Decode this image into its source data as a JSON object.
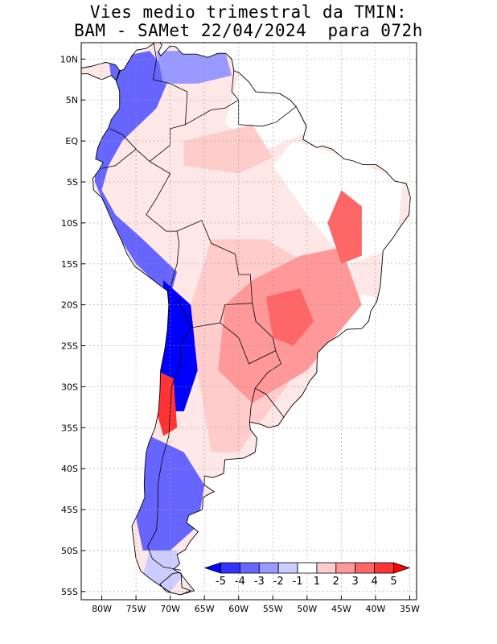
{
  "title": {
    "line1": "Vies medio trimestral da TMIN:",
    "line2": "BAM - SAMet 22/04/2024  para 072h"
  },
  "map": {
    "lon_ticks": [
      "80W",
      "75W",
      "70W",
      "65W",
      "60W",
      "55W",
      "50W",
      "45W",
      "40W",
      "35W"
    ],
    "lat_ticks": [
      "10N",
      "5N",
      "EQ",
      "5S",
      "10S",
      "15S",
      "20S",
      "25S",
      "30S",
      "35S",
      "40S",
      "45S",
      "50S",
      "55S"
    ],
    "lon_range": [
      -83,
      -34
    ],
    "lat_range": [
      12,
      -56
    ],
    "grid": true
  },
  "colorbar": {
    "labels": [
      "-5",
      "-4",
      "-3",
      "-2",
      "-1",
      "1",
      "2",
      "3",
      "4",
      "5"
    ],
    "colors": [
      "#0000ff",
      "#3333ff",
      "#6666ff",
      "#9999ff",
      "#ccccff",
      "#ffffff",
      "#ffcccc",
      "#ff9999",
      "#ff6666",
      "#ff3333",
      "#ff0000"
    ]
  }
}
